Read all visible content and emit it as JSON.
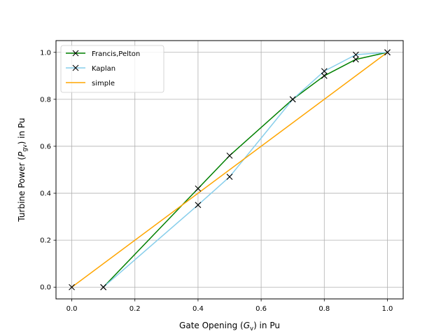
{
  "chart_data": {
    "type": "line",
    "title": "",
    "xlabel": "Gate Opening ($G_{\\rm v}$) in Pu",
    "ylabel": "Turbine Power ($P_{\\rm gv}$) in Pu",
    "xlim": [
      -0.05,
      1.05
    ],
    "ylim": [
      -0.05,
      1.05
    ],
    "xticks": [
      0.0,
      0.2,
      0.4,
      0.6,
      0.8,
      1.0
    ],
    "yticks": [
      0.0,
      0.2,
      0.4,
      0.6,
      0.8,
      1.0
    ],
    "grid": true,
    "legend_position": "top-left",
    "series": [
      {
        "name": "Francis,Pelton",
        "color": "#008000",
        "marker": "x",
        "x": [
          0.1,
          0.4,
          0.5,
          0.7,
          0.8,
          0.9,
          1.0
        ],
        "y": [
          0.0,
          0.42,
          0.56,
          0.8,
          0.9,
          0.97,
          1.0
        ]
      },
      {
        "name": "Kaplan",
        "color": "#87ceeb",
        "marker": "x",
        "x": [
          0.1,
          0.4,
          0.5,
          0.7,
          0.8,
          0.9,
          1.0
        ],
        "y": [
          0.0,
          0.35,
          0.47,
          0.8,
          0.92,
          0.99,
          1.0
        ]
      },
      {
        "name": "simple",
        "color": "#ffa500",
        "marker": "none",
        "x": [
          0.0,
          1.0
        ],
        "y": [
          0.0,
          1.0
        ]
      }
    ],
    "extra_markers": {
      "color": "#000000",
      "marker": "x",
      "x": [
        0.0
      ],
      "y": [
        0.0
      ]
    }
  }
}
